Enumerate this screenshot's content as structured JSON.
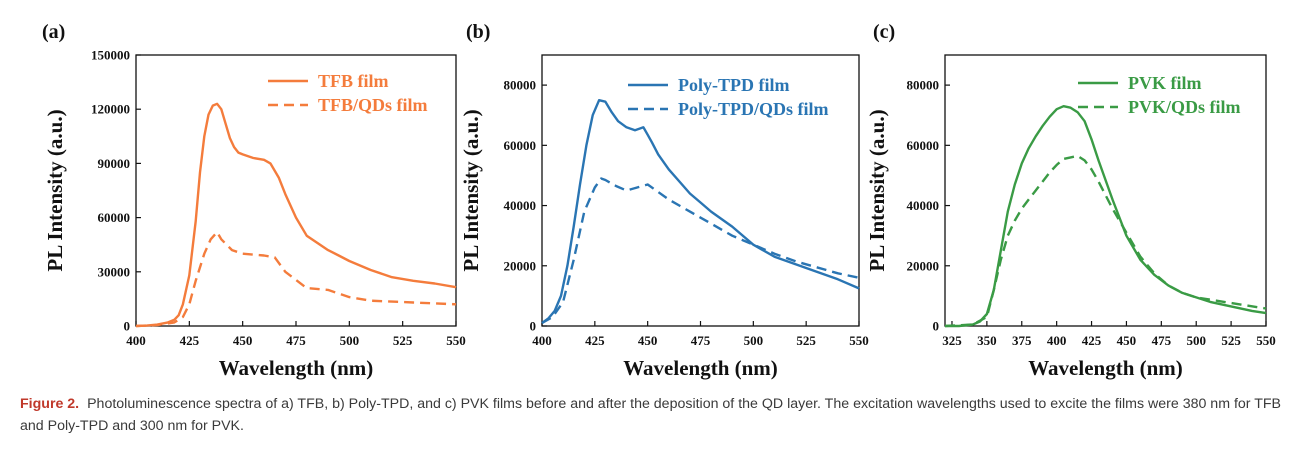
{
  "chart_data": [
    {
      "type": "line",
      "panel": "(a)",
      "xlabel": "Wavelength (nm)",
      "ylabel": "PL Intensity (a.u.)",
      "xlim": [
        400,
        550
      ],
      "ylim": [
        0,
        150000
      ],
      "xticks": [
        400,
        425,
        450,
        475,
        500,
        525,
        550
      ],
      "yticks": [
        0,
        30000,
        60000,
        90000,
        120000,
        150000
      ],
      "legend_position": "top-right",
      "series": [
        {
          "name": "TFB film",
          "style": "solid",
          "color": "#f47c3c",
          "x": [
            400,
            405,
            410,
            415,
            418,
            420,
            422,
            425,
            428,
            430,
            432,
            434,
            436,
            438,
            440,
            442,
            444,
            446,
            448,
            450,
            455,
            460,
            463,
            467,
            470,
            475,
            480,
            485,
            490,
            495,
            500,
            510,
            520,
            530,
            540,
            550
          ],
          "y": [
            0,
            200,
            800,
            2000,
            3500,
            6000,
            12000,
            28000,
            58000,
            85000,
            105000,
            117000,
            122000,
            123000,
            120000,
            112000,
            104000,
            99000,
            96000,
            95000,
            93000,
            92000,
            90000,
            82000,
            73000,
            60000,
            50000,
            46000,
            42000,
            39000,
            36000,
            31000,
            27000,
            25000,
            23500,
            21500
          ]
        },
        {
          "name": "TFB/QDs film",
          "style": "dashed",
          "color": "#f47c3c",
          "x": [
            400,
            410,
            418,
            422,
            425,
            428,
            432,
            435,
            438,
            440,
            445,
            450,
            460,
            465,
            470,
            480,
            490,
            500,
            510,
            520,
            530,
            540,
            550
          ],
          "y": [
            0,
            500,
            2000,
            5000,
            12000,
            25000,
            40000,
            48000,
            52000,
            48000,
            42000,
            40000,
            39000,
            38000,
            30000,
            21000,
            20000,
            16000,
            14000,
            13500,
            13000,
            12500,
            12000
          ]
        }
      ]
    },
    {
      "type": "line",
      "panel": "(b)",
      "xlabel": "Wavelength (nm)",
      "ylabel": "PL Intensity (a.u.)",
      "xlim": [
        400,
        550
      ],
      "ylim": [
        0,
        90000
      ],
      "xticks": [
        400,
        425,
        450,
        475,
        500,
        525,
        550
      ],
      "yticks": [
        0,
        20000,
        40000,
        60000,
        80000
      ],
      "legend_position": "top-right",
      "series": [
        {
          "name": "Poly-TPD film",
          "style": "solid",
          "color": "#2a75b3",
          "x": [
            400,
            403,
            406,
            409,
            412,
            415,
            418,
            421,
            424,
            427,
            430,
            433,
            436,
            440,
            444,
            448,
            450,
            452,
            455,
            460,
            465,
            470,
            475,
            480,
            490,
            500,
            510,
            520,
            530,
            540,
            550
          ],
          "y": [
            1000,
            2500,
            5000,
            10000,
            20000,
            33000,
            47000,
            60000,
            70000,
            75000,
            74500,
            71000,
            68000,
            66000,
            65000,
            66000,
            63500,
            61000,
            57000,
            52000,
            48000,
            44000,
            41000,
            38000,
            33000,
            27000,
            23000,
            20500,
            18000,
            15500,
            12500
          ]
        },
        {
          "name": "Poly-TPD/QDs film",
          "style": "dashed",
          "color": "#2a75b3",
          "x": [
            400,
            405,
            410,
            415,
            420,
            425,
            428,
            430,
            435,
            440,
            445,
            450,
            455,
            460,
            470,
            480,
            490,
            500,
            510,
            520,
            530,
            540,
            550
          ],
          "y": [
            1000,
            3000,
            8000,
            22000,
            38000,
            46000,
            49000,
            48500,
            46500,
            45000,
            46000,
            47000,
            44500,
            42000,
            38000,
            34000,
            30000,
            27000,
            24000,
            21500,
            19500,
            17500,
            16000
          ]
        }
      ]
    },
    {
      "type": "line",
      "panel": "(c)",
      "xlabel": "Wavelength (nm)",
      "ylabel": "PL Intensity (a.u.)",
      "xlim": [
        320,
        550
      ],
      "ylim": [
        0,
        90000
      ],
      "xticks": [
        325,
        350,
        375,
        400,
        425,
        450,
        475,
        500,
        525,
        550
      ],
      "yticks": [
        0,
        20000,
        40000,
        60000,
        80000
      ],
      "legend_position": "top-right",
      "series": [
        {
          "name": "PVK film",
          "style": "solid",
          "color": "#3a9b45",
          "x": [
            320,
            330,
            340,
            345,
            350,
            355,
            360,
            365,
            370,
            375,
            380,
            385,
            390,
            395,
            400,
            405,
            410,
            415,
            420,
            425,
            430,
            440,
            450,
            460,
            470,
            480,
            490,
            500,
            510,
            520,
            530,
            540,
            550
          ],
          "y": [
            0,
            0,
            500,
            1500,
            4000,
            12000,
            25000,
            38000,
            47000,
            54000,
            59000,
            63000,
            66500,
            69500,
            72000,
            73000,
            72500,
            71000,
            68000,
            62000,
            55000,
            42000,
            30000,
            22000,
            17000,
            13500,
            11000,
            9500,
            8000,
            7000,
            6000,
            5000,
            4300
          ]
        },
        {
          "name": "PVK/QDs film",
          "style": "dashed",
          "color": "#3a9b45",
          "x": [
            320,
            340,
            350,
            355,
            360,
            365,
            370,
            375,
            380,
            385,
            390,
            395,
            400,
            405,
            410,
            415,
            420,
            425,
            430,
            440,
            450,
            460,
            470,
            480,
            490,
            500,
            520,
            550
          ],
          "y": [
            0,
            500,
            3000,
            12000,
            22000,
            30000,
            35000,
            39000,
            42000,
            45000,
            48000,
            51000,
            53500,
            55500,
            56000,
            56500,
            55000,
            52000,
            48000,
            39000,
            31000,
            23000,
            17500,
            13500,
            11000,
            9500,
            8000,
            5800
          ]
        }
      ]
    }
  ],
  "figure_caption": {
    "label": "Figure 2.",
    "text": "Photoluminescence spectra of a) TFB, b) Poly-TPD, and c) PVK films before and after the deposition of the QD layer. The excitation wavelengths used to excite the films were 380 nm for TFB and Poly-TPD and 300 nm for PVK."
  }
}
